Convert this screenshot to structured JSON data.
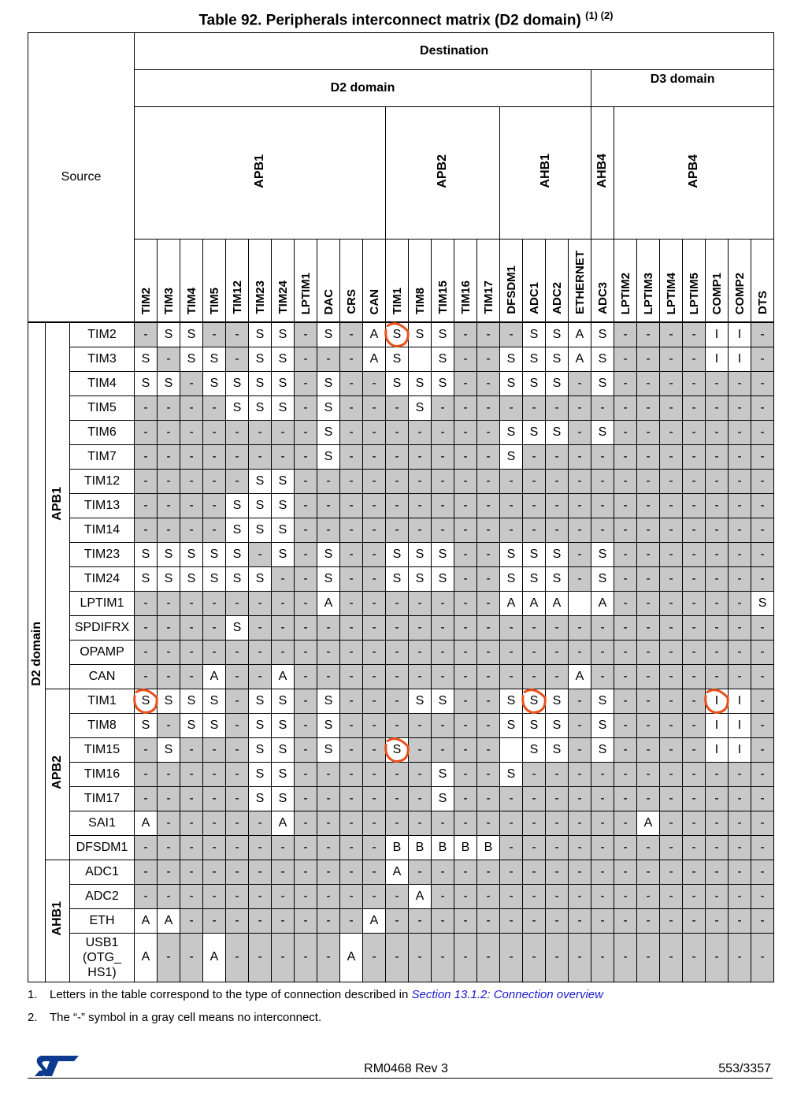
{
  "title": "Table 92. Peripherals interconnect matrix (D2 domain)",
  "title_notes": "(1) (2)",
  "header": {
    "source": "Source",
    "destination": "Destination",
    "d2_domain": "D2 domain",
    "d3_domain": "D3 domain",
    "buses": [
      "APB1",
      "APB2",
      "AHB1",
      "AHB4",
      "APB4"
    ]
  },
  "columns": [
    "TIM2",
    "TIM3",
    "TIM4",
    "TIM5",
    "TIM12",
    "TIM23",
    "TIM24",
    "LPTIM1",
    "DAC",
    "CRS",
    "CAN",
    "TIM1",
    "TIM8",
    "TIM15",
    "TIM16",
    "TIM17",
    "DFSDM1",
    "ADC1",
    "ADC2",
    "ETHERNET",
    "ADC3",
    "LPTIM2",
    "LPTIM3",
    "LPTIM4",
    "LPTIM5",
    "COMP1",
    "COMP2",
    "DTS"
  ],
  "row_domain": "D2 domain",
  "row_groups": [
    "APB1",
    "APB2",
    "AHB1"
  ],
  "rows": [
    {
      "name": "TIM2",
      "cells": [
        "-",
        "S",
        "S",
        "-",
        "-",
        "S",
        "S",
        "-",
        "S",
        "-",
        "A",
        "S",
        "S",
        "S",
        "-",
        "-",
        "-",
        "S",
        "S",
        "A",
        "S",
        "-",
        "-",
        "-",
        "-",
        "I",
        "I",
        "-"
      ]
    },
    {
      "name": "TIM3",
      "cells": [
        "S",
        "-",
        "S",
        "S",
        "-",
        "S",
        "S",
        "-",
        "-",
        "-",
        "A",
        "S",
        "",
        "S",
        "-",
        "-",
        "S",
        "S",
        "S",
        "A",
        "S",
        "-",
        "-",
        "-",
        "-",
        "I",
        "I",
        "-"
      ]
    },
    {
      "name": "TIM4",
      "cells": [
        "S",
        "S",
        "-",
        "S",
        "S",
        "S",
        "S",
        "-",
        "S",
        "-",
        "-",
        "S",
        "S",
        "S",
        "-",
        "-",
        "S",
        "S",
        "S",
        "-",
        "S",
        "-",
        "-",
        "-",
        "-",
        "-",
        "-",
        "-"
      ]
    },
    {
      "name": "TIM5",
      "cells": [
        "-",
        "-",
        "-",
        "-",
        "S",
        "S",
        "S",
        "-",
        "S",
        "-",
        "-",
        "-",
        "S",
        "-",
        "-",
        "-",
        "-",
        "-",
        "-",
        "-",
        "-",
        "-",
        "-",
        "-",
        "-",
        "-",
        "-",
        "-"
      ]
    },
    {
      "name": "TIM6",
      "cells": [
        "-",
        "-",
        "-",
        "-",
        "-",
        "-",
        "-",
        "-",
        "S",
        "-",
        "-",
        "-",
        "-",
        "-",
        "-",
        "-",
        "S",
        "S",
        "S",
        "-",
        "S",
        "-",
        "-",
        "-",
        "-",
        "-",
        "-",
        "-"
      ]
    },
    {
      "name": "TIM7",
      "cells": [
        "-",
        "-",
        "-",
        "-",
        "-",
        "-",
        "-",
        "-",
        "S",
        "-",
        "-",
        "-",
        "-",
        "-",
        "-",
        "-",
        "S",
        "-",
        "-",
        "-",
        "-",
        "-",
        "-",
        "-",
        "-",
        "-",
        "-",
        "-"
      ]
    },
    {
      "name": "TIM12",
      "cells": [
        "-",
        "-",
        "-",
        "-",
        "-",
        "S",
        "S",
        "-",
        "-",
        "-",
        "-",
        "-",
        "-",
        "-",
        "-",
        "-",
        "-",
        "-",
        "-",
        "-",
        "-",
        "-",
        "-",
        "-",
        "-",
        "-",
        "-",
        "-"
      ]
    },
    {
      "name": "TIM13",
      "cells": [
        "-",
        "-",
        "-",
        "-",
        "S",
        "S",
        "S",
        "-",
        "-",
        "-",
        "-",
        "-",
        "-",
        "-",
        "-",
        "-",
        "-",
        "-",
        "-",
        "-",
        "-",
        "-",
        "-",
        "-",
        "-",
        "-",
        "-",
        "-"
      ]
    },
    {
      "name": "TIM14",
      "cells": [
        "-",
        "-",
        "-",
        "-",
        "S",
        "S",
        "S",
        "-",
        "-",
        "-",
        "-",
        "-",
        "-",
        "-",
        "-",
        "-",
        "-",
        "-",
        "-",
        "-",
        "-",
        "-",
        "-",
        "-",
        "-",
        "-",
        "-",
        "-"
      ]
    },
    {
      "name": "TIM23",
      "cells": [
        "S",
        "S",
        "S",
        "S",
        "S",
        "-",
        "S",
        "-",
        "S",
        "-",
        "-",
        "S",
        "S",
        "S",
        "-",
        "-",
        "S",
        "S",
        "S",
        "-",
        "S",
        "-",
        "-",
        "-",
        "-",
        "-",
        "-",
        "-"
      ]
    },
    {
      "name": "TIM24",
      "cells": [
        "S",
        "S",
        "S",
        "S",
        "S",
        "S",
        "-",
        "-",
        "S",
        "-",
        "-",
        "S",
        "S",
        "S",
        "-",
        "-",
        "S",
        "S",
        "S",
        "-",
        "S",
        "-",
        "-",
        "-",
        "-",
        "-",
        "-",
        "-"
      ]
    },
    {
      "name": "LPTIM1",
      "cells": [
        "-",
        "-",
        "-",
        "-",
        "-",
        "-",
        "-",
        "-",
        "A",
        "-",
        "-",
        "-",
        "-",
        "-",
        "-",
        "-",
        "A",
        "A",
        "A",
        "",
        "A",
        "-",
        "-",
        "-",
        "-",
        "-",
        "-",
        "S"
      ]
    },
    {
      "name": "SPDIFRX",
      "cells": [
        "-",
        "-",
        "-",
        "-",
        "S",
        "-",
        "-",
        "-",
        "-",
        "-",
        "-",
        "-",
        "-",
        "-",
        "-",
        "-",
        "-",
        "-",
        "-",
        "-",
        "-",
        "-",
        "-",
        "-",
        "-",
        "-",
        "-",
        "-"
      ]
    },
    {
      "name": "OPAMP",
      "cells": [
        "-",
        "-",
        "-",
        "-",
        "-",
        "-",
        "-",
        "-",
        "-",
        "-",
        "-",
        "-",
        "-",
        "-",
        "-",
        "-",
        "-",
        "-",
        "-",
        "-",
        "-",
        "-",
        "-",
        "-",
        "-",
        "-",
        "-",
        "-"
      ]
    },
    {
      "name": "CAN",
      "cells": [
        "-",
        "-",
        "-",
        "A",
        "-",
        "-",
        "A",
        "-",
        "-",
        "-",
        "-",
        "-",
        "-",
        "-",
        "-",
        "-",
        "-",
        "-",
        "-",
        "A",
        "-",
        "-",
        "-",
        "-",
        "-",
        "-",
        "-",
        "-"
      ]
    },
    {
      "name": "TIM1",
      "cells": [
        "S",
        "S",
        "S",
        "S",
        "-",
        "S",
        "S",
        "-",
        "S",
        "-",
        "-",
        "-",
        "S",
        "S",
        "-",
        "-",
        "S",
        "S",
        "S",
        "-",
        "S",
        "-",
        "-",
        "-",
        "-",
        "I",
        "I",
        "-"
      ]
    },
    {
      "name": "TIM8",
      "cells": [
        "S",
        "-",
        "S",
        "S",
        "-",
        "S",
        "S",
        "-",
        "S",
        "-",
        "-",
        "-",
        "-",
        "-",
        "-",
        "-",
        "S",
        "S",
        "S",
        "-",
        "S",
        "-",
        "-",
        "-",
        "-",
        "I",
        "I",
        "-"
      ]
    },
    {
      "name": "TIM15",
      "cells": [
        "-",
        "S",
        "-",
        "-",
        "-",
        "S",
        "S",
        "-",
        "S",
        "-",
        "-",
        "S",
        "-",
        "-",
        "-",
        "-",
        "",
        "S",
        "S",
        "-",
        "S",
        "-",
        "-",
        "-",
        "-",
        "I",
        "I",
        "-"
      ]
    },
    {
      "name": "TIM16",
      "cells": [
        "-",
        "-",
        "-",
        "-",
        "-",
        "S",
        "S",
        "-",
        "-",
        "-",
        "-",
        "-",
        "-",
        "S",
        "-",
        "-",
        "S",
        "-",
        "-",
        "-",
        "-",
        "-",
        "-",
        "-",
        "-",
        "-",
        "-",
        "-"
      ]
    },
    {
      "name": "TIM17",
      "cells": [
        "-",
        "-",
        "-",
        "-",
        "-",
        "S",
        "S",
        "-",
        "-",
        "-",
        "-",
        "-",
        "-",
        "S",
        "-",
        "-",
        "-",
        "-",
        "-",
        "-",
        "-",
        "-",
        "-",
        "-",
        "-",
        "-",
        "-",
        "-"
      ]
    },
    {
      "name": "SAI1",
      "cells": [
        "A",
        "-",
        "-",
        "-",
        "-",
        "-",
        "A",
        "-",
        "-",
        "-",
        "-",
        "-",
        "-",
        "-",
        "-",
        "-",
        "-",
        "-",
        "-",
        "-",
        "-",
        "-",
        "A",
        "-",
        "-",
        "-",
        "-",
        "-"
      ]
    },
    {
      "name": "DFSDM1",
      "cells": [
        "-",
        "-",
        "-",
        "-",
        "-",
        "-",
        "-",
        "-",
        "-",
        "-",
        "-",
        "B",
        "B",
        "B",
        "B",
        "B",
        "-",
        "-",
        "-",
        "-",
        "-",
        "-",
        "-",
        "-",
        "-",
        "-",
        "-",
        "-"
      ]
    },
    {
      "name": "ADC1",
      "cells": [
        "-",
        "-",
        "-",
        "-",
        "-",
        "-",
        "-",
        "-",
        "-",
        "-",
        "-",
        "A",
        "-",
        "-",
        "-",
        "-",
        "-",
        "-",
        "-",
        "-",
        "-",
        "-",
        "-",
        "-",
        "-",
        "-",
        "-",
        "-"
      ]
    },
    {
      "name": "ADC2",
      "cells": [
        "-",
        "-",
        "-",
        "-",
        "-",
        "-",
        "-",
        "-",
        "-",
        "-",
        "-",
        "-",
        "A",
        "-",
        "-",
        "-",
        "-",
        "-",
        "-",
        "-",
        "-",
        "-",
        "-",
        "-",
        "-",
        "-",
        "-",
        "-"
      ]
    },
    {
      "name": "ETH",
      "cells": [
        "A",
        "A",
        "-",
        "-",
        "-",
        "-",
        "-",
        "-",
        "-",
        "-",
        "A",
        "-",
        "-",
        "-",
        "-",
        "-",
        "-",
        "-",
        "-",
        "-",
        "-",
        "-",
        "-",
        "-",
        "-",
        "-",
        "-",
        "-"
      ]
    },
    {
      "name": "USB1 (OTG_ HS1)",
      "cells": [
        "A",
        "-",
        "-",
        "A",
        "-",
        "-",
        "-",
        "-",
        "-",
        "A",
        "-",
        "-",
        "-",
        "-",
        "-",
        "-",
        "-",
        "-",
        "-",
        "-",
        "-",
        "-",
        "-",
        "-",
        "-",
        "-",
        "-",
        "-"
      ]
    }
  ],
  "footnotes": [
    {
      "num": "1.",
      "text": "Letters in the table correspond to the type of connection described in ",
      "link": "Section 13.1.2: Connection overview"
    },
    {
      "num": "2.",
      "text": "The “-” symbol in a gray cell means no interconnect."
    }
  ],
  "footer": {
    "logo": "ST",
    "ref": "RM0468 Rev 3",
    "page": "553/3357"
  },
  "annotation_color": "#e8501c"
}
